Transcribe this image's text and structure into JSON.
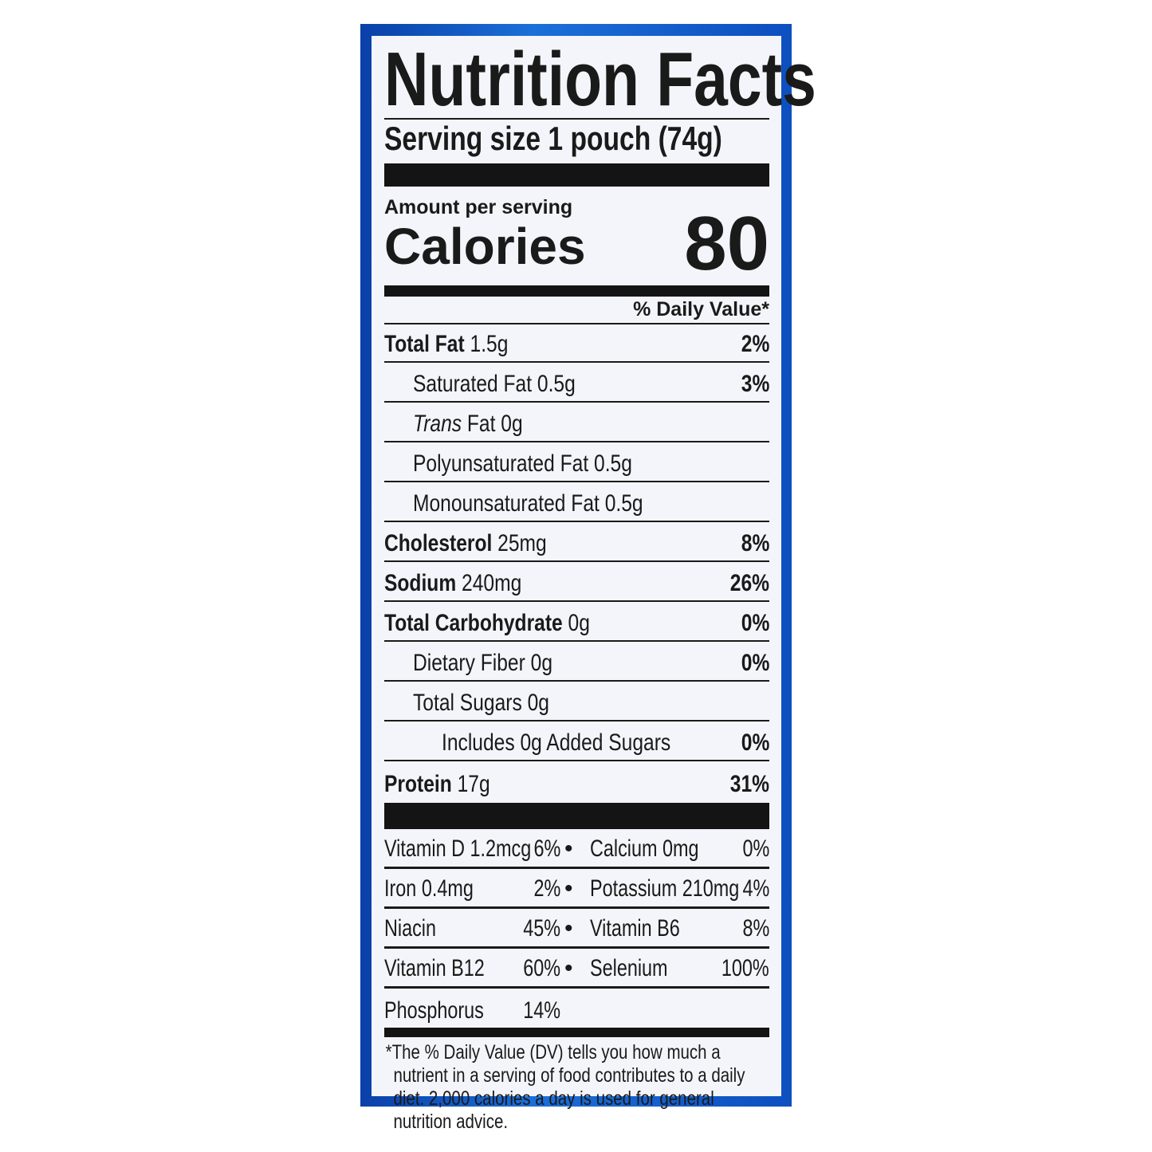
{
  "title": "Nutrition Facts",
  "serving_size": "Serving size 1 pouch (74g)",
  "amount_per_serving": "Amount per serving",
  "calories_label": "Calories",
  "calories_value": "80",
  "daily_value_header": "% Daily Value*",
  "nutrients": [
    {
      "name": "Total Fat",
      "amount": "1.5g",
      "dv": "2%",
      "bold": true,
      "indent": 0
    },
    {
      "name": "Saturated Fat",
      "amount": "0.5g",
      "dv": "3%",
      "bold": false,
      "indent": 1
    },
    {
      "name": "Trans",
      "name_suffix": "Fat",
      "amount": "0g",
      "dv": "",
      "bold": false,
      "indent": 1
    },
    {
      "name": "Polyunsaturated Fat",
      "amount": "0.5g",
      "dv": "",
      "bold": false,
      "indent": 1
    },
    {
      "name": "Monounsaturated Fat",
      "amount": "0.5g",
      "dv": "",
      "bold": false,
      "indent": 1
    },
    {
      "name": "Cholesterol",
      "amount": "25mg",
      "dv": "8%",
      "bold": true,
      "indent": 0
    },
    {
      "name": "Sodium",
      "amount": "240mg",
      "dv": "26%",
      "bold": true,
      "indent": 0
    },
    {
      "name": "Total Carbohydrate",
      "amount": "0g",
      "dv": "0%",
      "bold": true,
      "indent": 0
    },
    {
      "name": "Dietary Fiber",
      "amount": "0g",
      "dv": "0%",
      "bold": false,
      "indent": 1
    },
    {
      "name": "Total Sugars",
      "amount": "0g",
      "dv": "",
      "bold": false,
      "indent": 1
    },
    {
      "name": "Includes 0g Added Sugars",
      "amount": "",
      "dv": "0%",
      "bold": false,
      "indent": 2
    },
    {
      "name": "Protein",
      "amount": "17g",
      "dv": "31%",
      "bold": true,
      "indent": 0
    }
  ],
  "vitamins": [
    {
      "left": "Vitamin D 1.2mcg",
      "left_dv": "6%",
      "right": "Calcium 0mg",
      "right_dv": "0%"
    },
    {
      "left": "Iron 0.4mg",
      "left_dv": "2%",
      "right": "Potassium 210mg",
      "right_dv": "4%"
    },
    {
      "left": "Niacin",
      "left_dv": "45%",
      "right": "Vitamin B6",
      "right_dv": "8%"
    },
    {
      "left": "Vitamin B12",
      "left_dv": "60%",
      "right": "Selenium",
      "right_dv": "100%"
    },
    {
      "left": "Phosphorus",
      "left_dv": "14%",
      "right": "",
      "right_dv": ""
    }
  ],
  "separator": "•",
  "footnote": "*The % Daily Value (DV) tells you how much a nutrient in a serving of food contributes to a daily diet. 2,000 calories a day is used for general nutrition advice.",
  "colors": {
    "frame": "#1b6fd8",
    "panel": "#f4f5fa",
    "ink": "#1a1a1a"
  }
}
